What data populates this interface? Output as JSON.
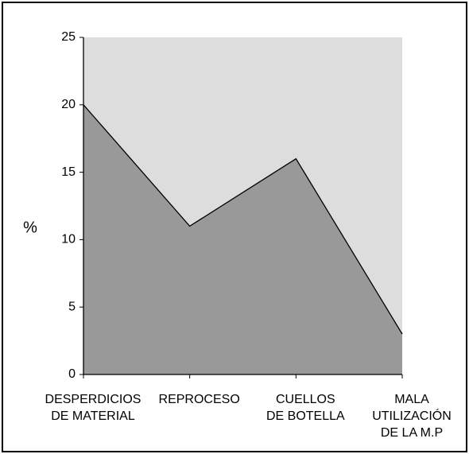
{
  "chart_data": {
    "type": "area",
    "ylabel": "%",
    "categories": [
      "DESPERDICIOS\nDE MATERIAL",
      "REPROCESO",
      "CUELLOS\nDE BOTELLA",
      "MALA\nUTILIZACIÓN\nDE LA M.P"
    ],
    "values": [
      20,
      11,
      16,
      3
    ],
    "color": "#999999",
    "background": "#dddddd",
    "ylim": [
      0,
      25
    ],
    "yticks": [
      0,
      5,
      10,
      15,
      20,
      25
    ]
  }
}
